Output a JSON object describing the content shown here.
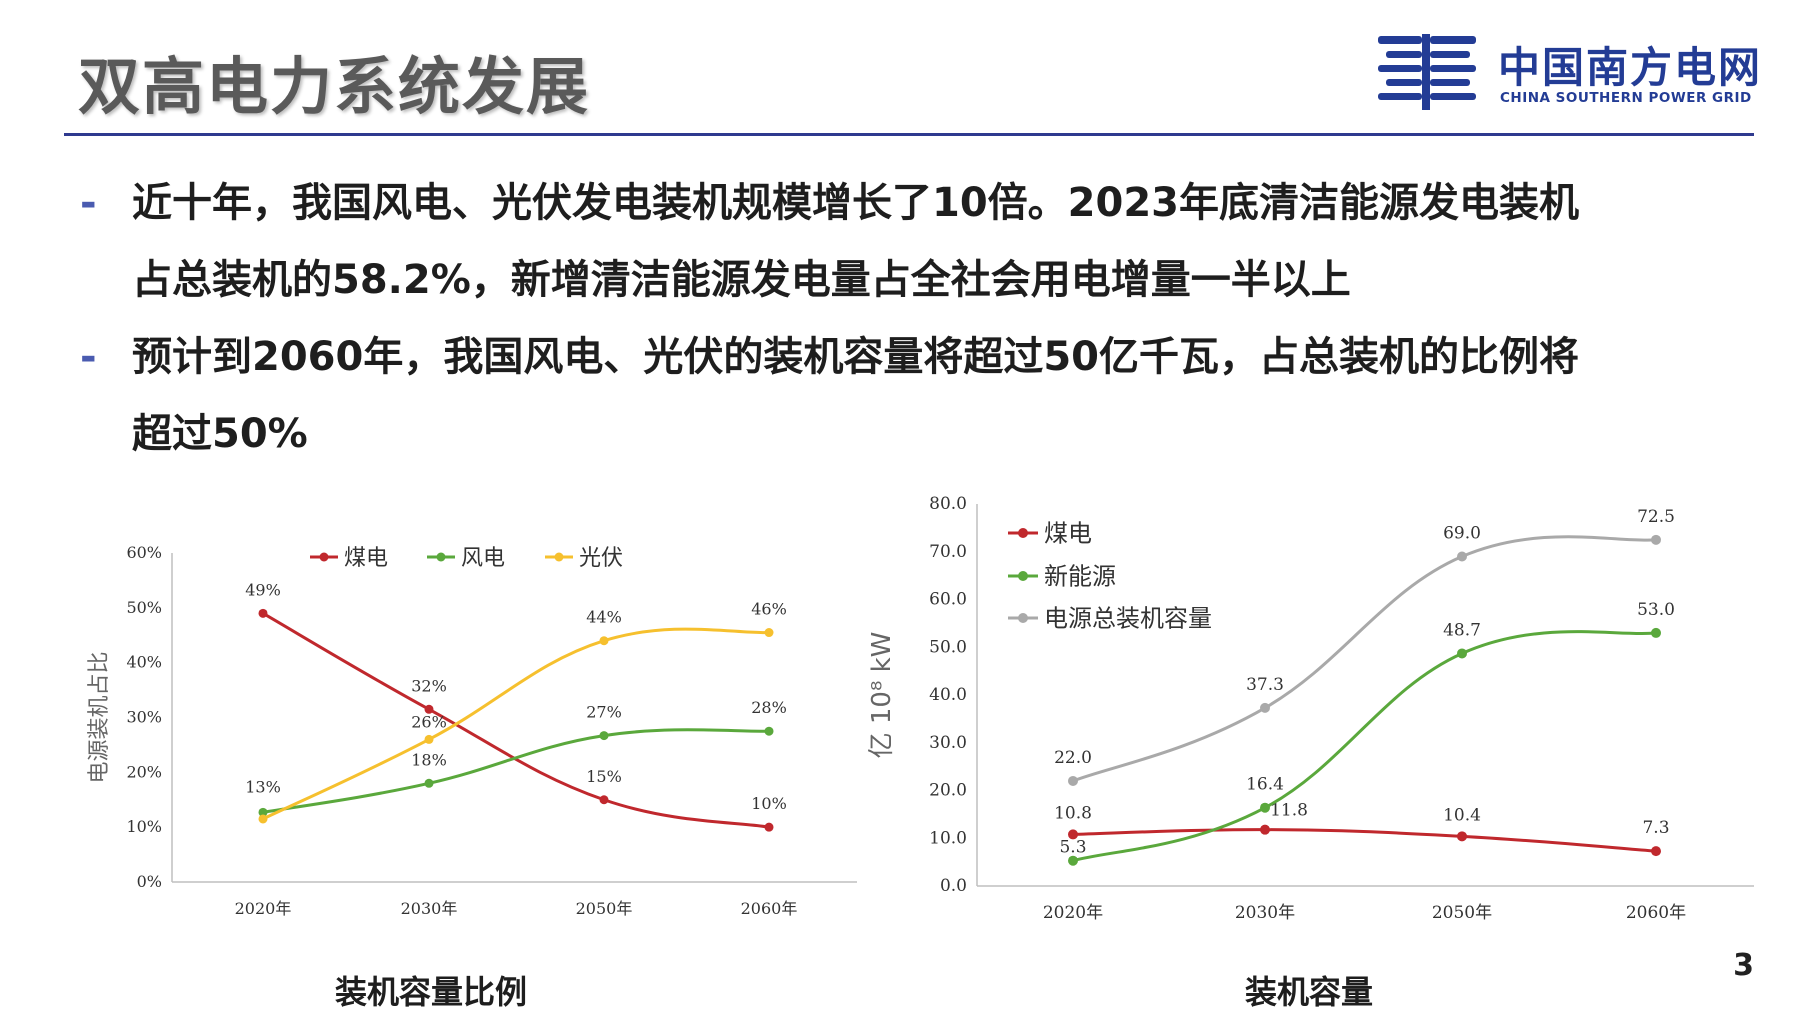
{
  "slide": {
    "title": "双高电力系统发展",
    "page_number": "3",
    "logo": {
      "cn": "中国南方电网",
      "en": "CHINA SOUTHERN POWER GRID",
      "color": "#233c95"
    },
    "bullets": [
      {
        "marker": "-",
        "line1": "近十年，我国风电、光伏发电装机规模增长了10倍。2023年底清洁能源发电装机",
        "line2": "占总装机的58.2%，新增清洁能源发电量占全社会用电增量一半以上"
      },
      {
        "marker": "-",
        "line1": "预计到2060年，我国风电、光伏的装机容量将超过50亿千瓦，占总装机的比例将",
        "line2": "超过50%"
      }
    ]
  },
  "chart_data": [
    {
      "type": "line",
      "caption": "装机容量比例",
      "ylabel": "电源装机占比",
      "categories": [
        "2020年",
        "2030年",
        "2050年",
        "2060年"
      ],
      "yticks": [
        "0%",
        "10%",
        "20%",
        "30%",
        "40%",
        "50%",
        "60%"
      ],
      "ylim": [
        0,
        60
      ],
      "legend_position": "top",
      "series": [
        {
          "name": "煤电",
          "color": "#c0282d",
          "values": [
            49,
            31.5,
            15,
            10
          ],
          "labels": [
            "49%",
            "32%",
            "15%",
            "10%"
          ]
        },
        {
          "name": "风电",
          "color": "#5aa83c",
          "values": [
            12.7,
            18,
            26.7,
            27.5
          ],
          "labels": [
            "13%",
            "18%",
            "27%",
            "28%"
          ]
        },
        {
          "name": "光伏",
          "color": "#f6c02e",
          "values": [
            11.5,
            26,
            44,
            45.5
          ],
          "labels": [
            "",
            "26%",
            "44%",
            "46%"
          ]
        }
      ]
    },
    {
      "type": "line",
      "caption": "装机容量",
      "ylabel": "亿 10⁸ kW",
      "categories": [
        "2020年",
        "2030年",
        "2050年",
        "2060年"
      ],
      "yticks": [
        "0.0",
        "10.0",
        "20.0",
        "30.0",
        "40.0",
        "50.0",
        "60.0",
        "70.0",
        "80.0"
      ],
      "ylim": [
        0,
        80
      ],
      "legend_position": "top-left",
      "series": [
        {
          "name": "煤电",
          "color": "#c0282d",
          "values": [
            10.8,
            11.8,
            10.4,
            7.3
          ],
          "labels": [
            "10.8",
            "11.8",
            "10.4",
            "7.3"
          ]
        },
        {
          "name": "新能源",
          "color": "#5aa83c",
          "values": [
            5.3,
            16.4,
            48.7,
            53.0
          ],
          "labels": [
            "5.3",
            "16.4",
            "48.7",
            "53.0"
          ]
        },
        {
          "name": "电源总装机容量",
          "color": "#a9a9a9",
          "values": [
            22.0,
            37.3,
            69.0,
            72.5
          ],
          "labels": [
            "22.0",
            "37.3",
            "69.0",
            "72.5"
          ]
        }
      ]
    }
  ]
}
